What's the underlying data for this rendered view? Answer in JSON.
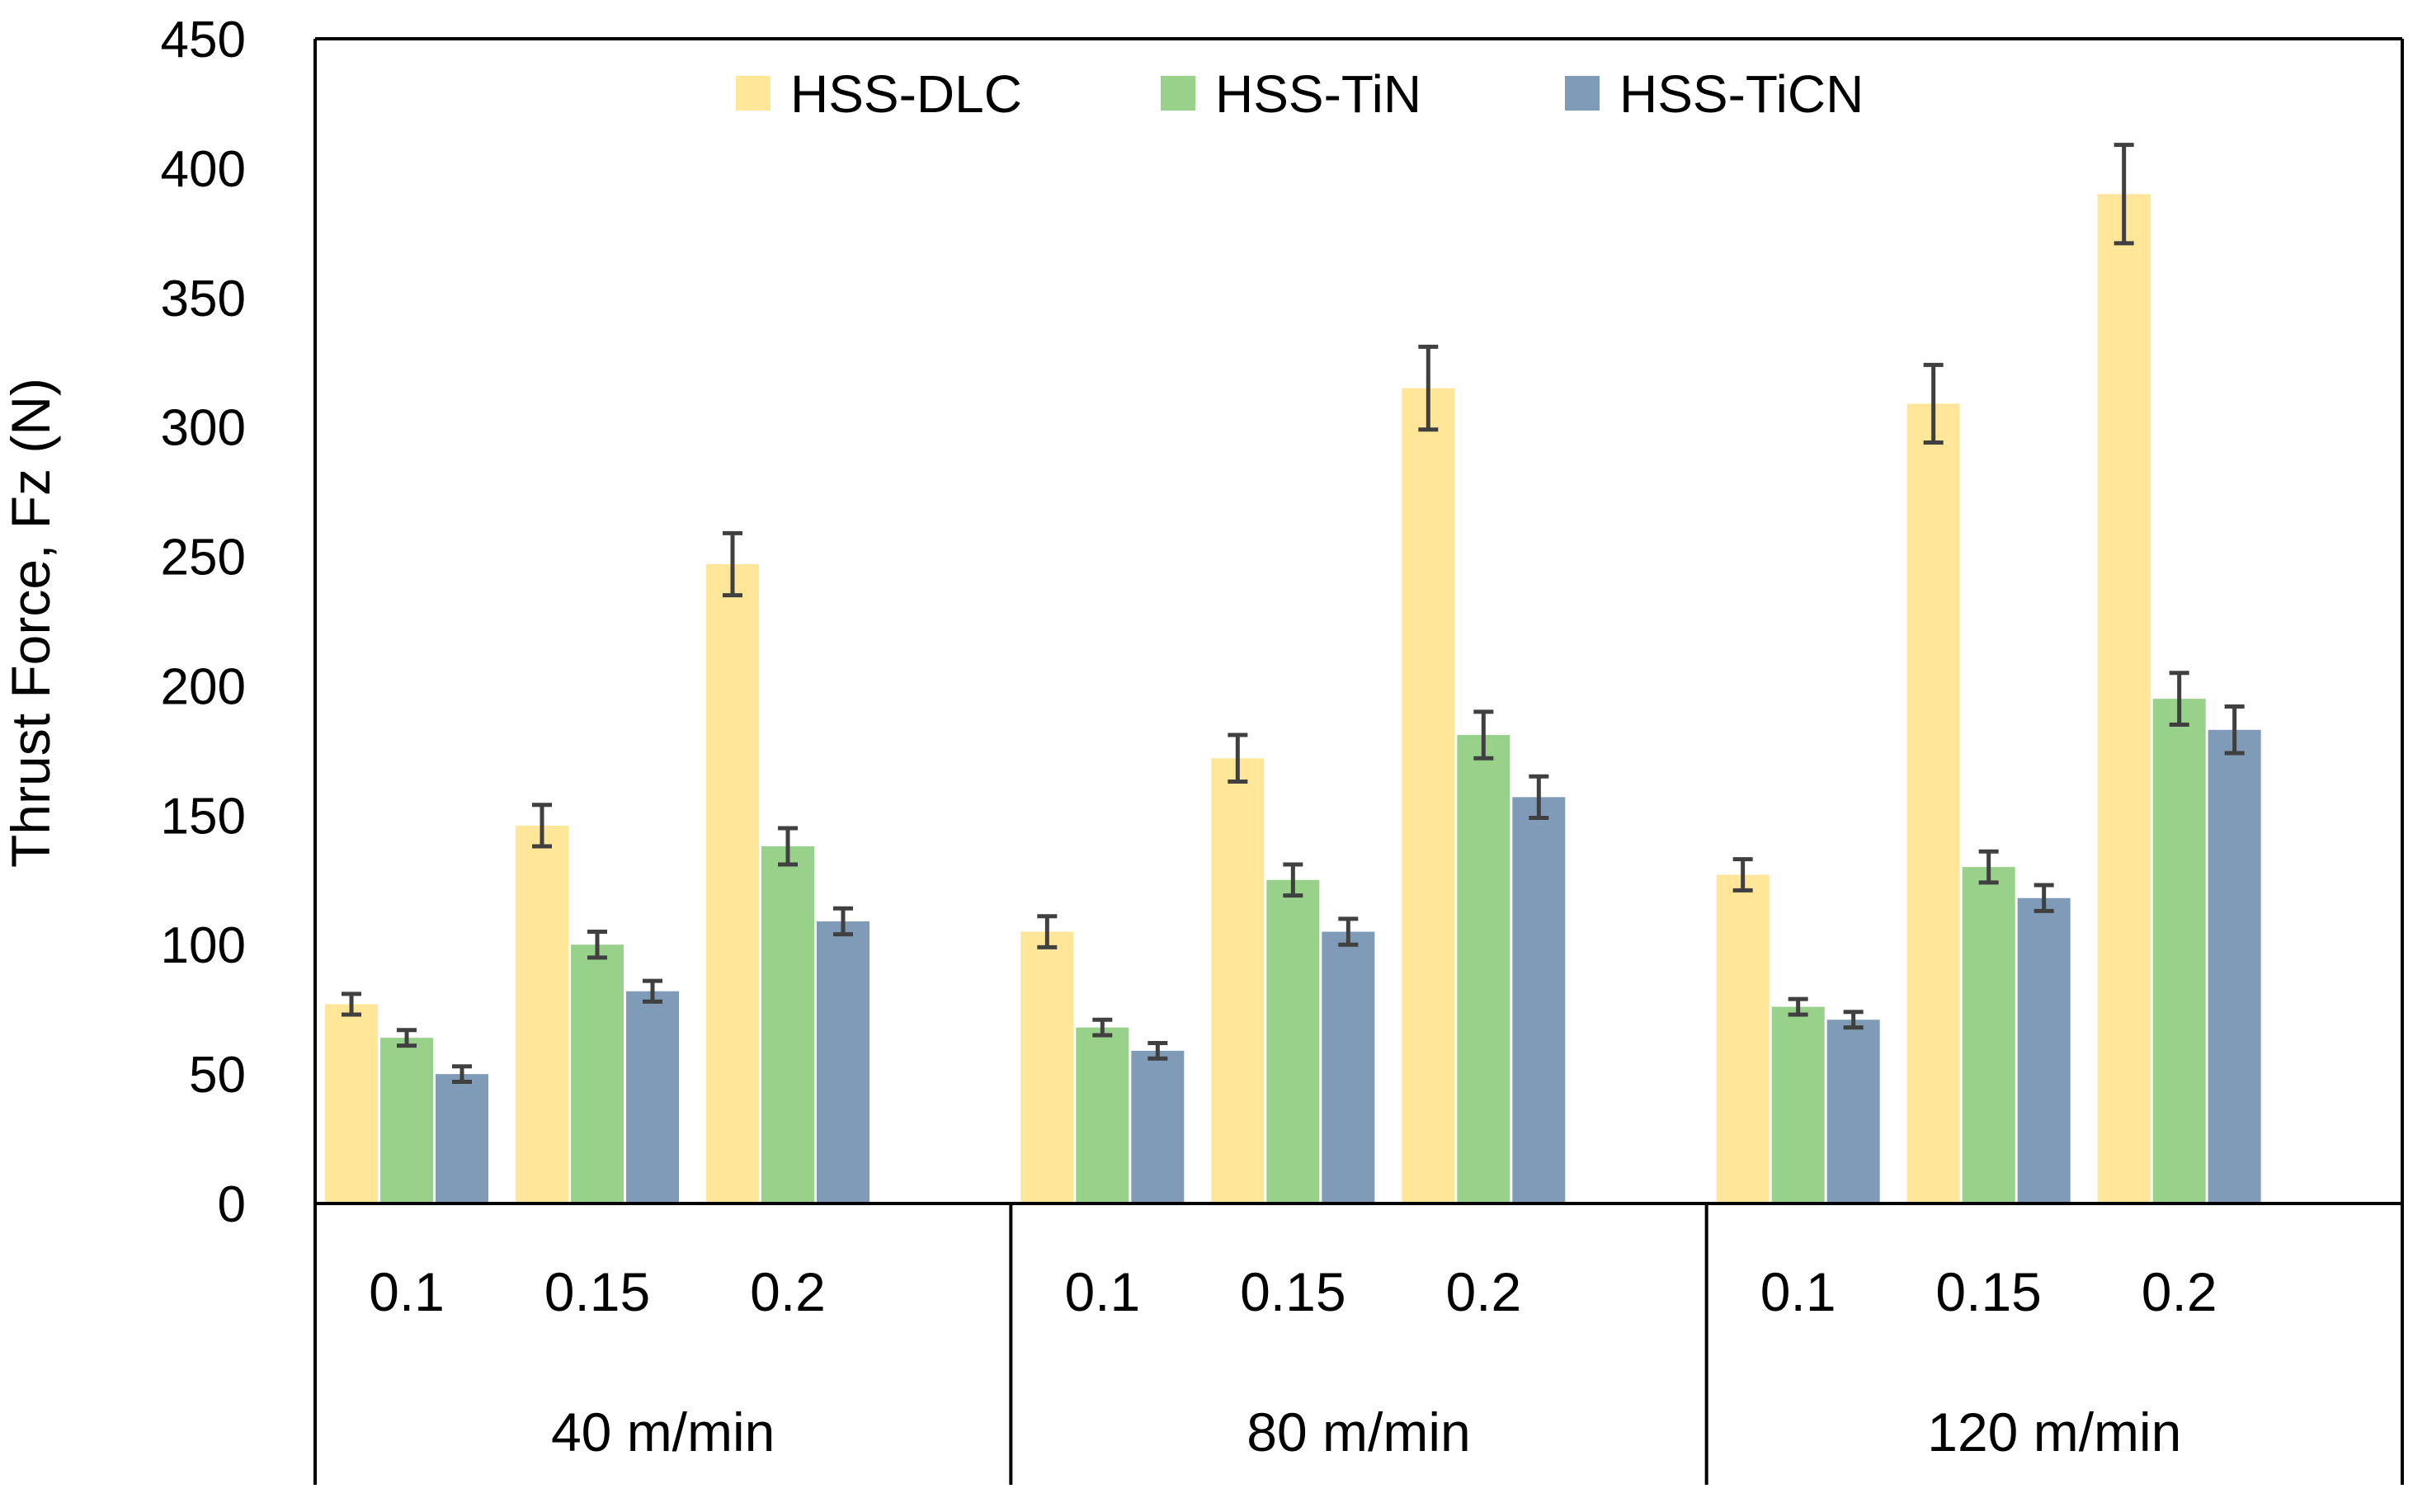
{
  "chart_data": {
    "type": "bar",
    "ylabel": "Thrust Force, Fz  (N)",
    "ylim": [
      0,
      450
    ],
    "yticks": [
      0,
      50,
      100,
      150,
      200,
      250,
      300,
      350,
      400,
      450
    ],
    "grid": false,
    "legend_position": "top-center",
    "groups": [
      {
        "label": "40 m/min",
        "categories": [
          "0.1",
          "0.15",
          "0.2"
        ]
      },
      {
        "label": "80 m/min",
        "categories": [
          "0.1",
          "0.15",
          "0.2"
        ]
      },
      {
        "label": "120 m/min",
        "categories": [
          "0.1",
          "0.15",
          "0.2"
        ]
      }
    ],
    "series": [
      {
        "name": "HSS-DLC",
        "color": "#FFE699",
        "values": [
          77,
          146,
          247,
          105,
          172,
          315,
          127,
          309,
          390
        ],
        "errors": [
          4,
          8,
          12,
          6,
          9,
          16,
          6,
          15,
          19
        ]
      },
      {
        "name": "HSS-TiN",
        "color": "#98D18A",
        "values": [
          64,
          100,
          138,
          68,
          125,
          181,
          76,
          130,
          195
        ],
        "errors": [
          3,
          5,
          7,
          3,
          6,
          9,
          3,
          6,
          10
        ]
      },
      {
        "name": "HSS-TiCN",
        "color": "#7F9BB7",
        "values": [
          50,
          82,
          109,
          59,
          105,
          157,
          71,
          118,
          183
        ],
        "errors": [
          3,
          4,
          5,
          3,
          5,
          8,
          3,
          5,
          9
        ]
      }
    ]
  }
}
